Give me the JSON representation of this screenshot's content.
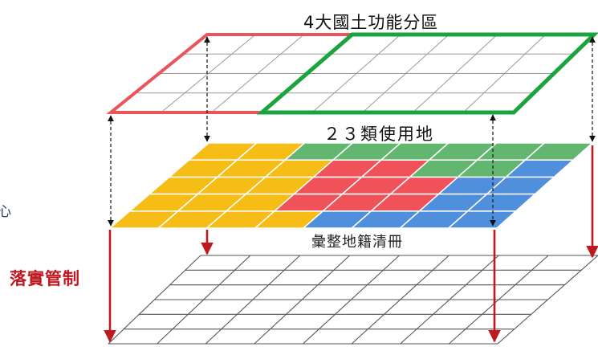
{
  "labels": {
    "top_layer": "4大國土功能分區",
    "middle_layer": "２３類使用地",
    "bottom_layer": "彙整地籍清冊",
    "side": "落實管制",
    "edge_glyph": "心"
  },
  "colors": {
    "zone_red": "#e8555a",
    "zone_green": "#1aa33f",
    "tile_yellow": "#f6bd16",
    "tile_green": "#63b66f",
    "tile_red": "#f0525a",
    "tile_blue": "#4f8fdc",
    "arrow_red": "#c0181f",
    "dashed": "#222222",
    "grid": "#555555"
  }
}
